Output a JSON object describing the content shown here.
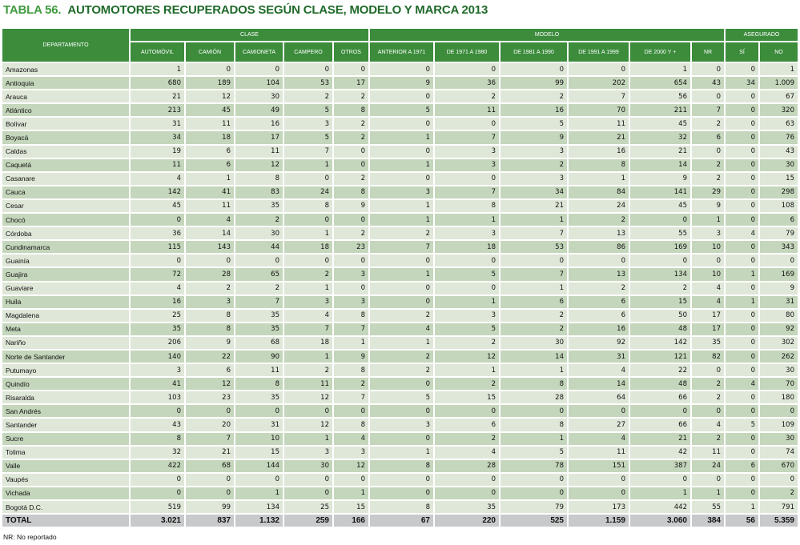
{
  "title": {
    "number": "TABLA 56.",
    "text": "AUTOMOTORES RECUPERADOS SEGÚN CLASE, MODELO Y MARCA 2013"
  },
  "colors": {
    "header": "#3c8c3c",
    "row_light": "#dfe7d8",
    "row_dark": "#c4d6bb",
    "total": "#c8c9cb",
    "title": "#1f6a2a"
  },
  "header": {
    "departamento": "DEPARTAMENTO",
    "groups": [
      {
        "label": "CLASE",
        "columns": [
          "AUTOMÓVIL",
          "CAMIÓN",
          "CAMIONETA",
          "CAMPERO",
          "OTROS"
        ]
      },
      {
        "label": "MODELO",
        "columns": [
          "ANTERIOR A 1971",
          "DE 1971 A 1980",
          "DE 1981 A 1990",
          "DE 1991 A 1999",
          "DE 2000 Y +",
          "NR"
        ]
      },
      {
        "label": "ASEGURADO",
        "columns": [
          "SÍ",
          "NO"
        ]
      }
    ]
  },
  "rows": [
    {
      "dep": "Amazonas",
      "values": [
        "1",
        "0",
        "0",
        "0",
        "0",
        "0",
        "0",
        "0",
        "0",
        "1",
        "0",
        "0",
        "1"
      ]
    },
    {
      "dep": "Antioquia",
      "values": [
        "680",
        "189",
        "104",
        "53",
        "17",
        "9",
        "36",
        "99",
        "202",
        "654",
        "43",
        "34",
        "1.009"
      ]
    },
    {
      "dep": "Arauca",
      "values": [
        "21",
        "12",
        "30",
        "2",
        "2",
        "0",
        "2",
        "2",
        "7",
        "56",
        "0",
        "0",
        "67"
      ]
    },
    {
      "dep": "Atlántico",
      "values": [
        "213",
        "45",
        "49",
        "5",
        "8",
        "5",
        "11",
        "16",
        "70",
        "211",
        "7",
        "0",
        "320"
      ]
    },
    {
      "dep": "Bolívar",
      "values": [
        "31",
        "11",
        "16",
        "3",
        "2",
        "0",
        "0",
        "5",
        "11",
        "45",
        "2",
        "0",
        "63"
      ]
    },
    {
      "dep": "Boyacá",
      "values": [
        "34",
        "18",
        "17",
        "5",
        "2",
        "1",
        "7",
        "9",
        "21",
        "32",
        "6",
        "0",
        "76"
      ]
    },
    {
      "dep": "Caldas",
      "values": [
        "19",
        "6",
        "11",
        "7",
        "0",
        "0",
        "3",
        "3",
        "16",
        "21",
        "0",
        "0",
        "43"
      ]
    },
    {
      "dep": "Caquetá",
      "values": [
        "11",
        "6",
        "12",
        "1",
        "0",
        "1",
        "3",
        "2",
        "8",
        "14",
        "2",
        "0",
        "30"
      ]
    },
    {
      "dep": "Casanare",
      "values": [
        "4",
        "1",
        "8",
        "0",
        "2",
        "0",
        "0",
        "3",
        "1",
        "9",
        "2",
        "0",
        "15"
      ]
    },
    {
      "dep": "Cauca",
      "values": [
        "142",
        "41",
        "83",
        "24",
        "8",
        "3",
        "7",
        "34",
        "84",
        "141",
        "29",
        "0",
        "298"
      ]
    },
    {
      "dep": "Cesar",
      "values": [
        "45",
        "11",
        "35",
        "8",
        "9",
        "1",
        "8",
        "21",
        "24",
        "45",
        "9",
        "0",
        "108"
      ]
    },
    {
      "dep": "Chocó",
      "values": [
        "0",
        "4",
        "2",
        "0",
        "0",
        "1",
        "1",
        "1",
        "2",
        "0",
        "1",
        "0",
        "6"
      ]
    },
    {
      "dep": "Córdoba",
      "values": [
        "36",
        "14",
        "30",
        "1",
        "2",
        "2",
        "3",
        "7",
        "13",
        "55",
        "3",
        "4",
        "79"
      ]
    },
    {
      "dep": "Cundinamarca",
      "values": [
        "115",
        "143",
        "44",
        "18",
        "23",
        "7",
        "18",
        "53",
        "86",
        "169",
        "10",
        "0",
        "343"
      ]
    },
    {
      "dep": "Guainía",
      "values": [
        "0",
        "0",
        "0",
        "0",
        "0",
        "0",
        "0",
        "0",
        "0",
        "0",
        "0",
        "0",
        "0"
      ]
    },
    {
      "dep": "Guajira",
      "values": [
        "72",
        "28",
        "65",
        "2",
        "3",
        "1",
        "5",
        "7",
        "13",
        "134",
        "10",
        "1",
        "169"
      ]
    },
    {
      "dep": "Guaviare",
      "values": [
        "4",
        "2",
        "2",
        "1",
        "0",
        "0",
        "0",
        "1",
        "2",
        "2",
        "4",
        "0",
        "9"
      ]
    },
    {
      "dep": "Huila",
      "values": [
        "16",
        "3",
        "7",
        "3",
        "3",
        "0",
        "1",
        "6",
        "6",
        "15",
        "4",
        "1",
        "31"
      ]
    },
    {
      "dep": "Magdalena",
      "values": [
        "25",
        "8",
        "35",
        "4",
        "8",
        "2",
        "3",
        "2",
        "6",
        "50",
        "17",
        "0",
        "80"
      ]
    },
    {
      "dep": "Meta",
      "values": [
        "35",
        "8",
        "35",
        "7",
        "7",
        "4",
        "5",
        "2",
        "16",
        "48",
        "17",
        "0",
        "92"
      ]
    },
    {
      "dep": "Nariño",
      "values": [
        "206",
        "9",
        "68",
        "18",
        "1",
        "1",
        "2",
        "30",
        "92",
        "142",
        "35",
        "0",
        "302"
      ]
    },
    {
      "dep": "Norte de Santander",
      "values": [
        "140",
        "22",
        "90",
        "1",
        "9",
        "2",
        "12",
        "14",
        "31",
        "121",
        "82",
        "0",
        "262"
      ]
    },
    {
      "dep": "Putumayo",
      "values": [
        "3",
        "6",
        "11",
        "2",
        "8",
        "2",
        "1",
        "1",
        "4",
        "22",
        "0",
        "0",
        "30"
      ]
    },
    {
      "dep": "Quindío",
      "values": [
        "41",
        "12",
        "8",
        "11",
        "2",
        "0",
        "2",
        "8",
        "14",
        "48",
        "2",
        "4",
        "70"
      ]
    },
    {
      "dep": "Risaralda",
      "values": [
        "103",
        "23",
        "35",
        "12",
        "7",
        "5",
        "15",
        "28",
        "64",
        "66",
        "2",
        "0",
        "180"
      ]
    },
    {
      "dep": "San Andrés",
      "values": [
        "0",
        "0",
        "0",
        "0",
        "0",
        "0",
        "0",
        "0",
        "0",
        "0",
        "0",
        "0",
        "0"
      ]
    },
    {
      "dep": "Santander",
      "values": [
        "43",
        "20",
        "31",
        "12",
        "8",
        "3",
        "6",
        "8",
        "27",
        "66",
        "4",
        "5",
        "109"
      ]
    },
    {
      "dep": "Sucre",
      "values": [
        "8",
        "7",
        "10",
        "1",
        "4",
        "0",
        "2",
        "1",
        "4",
        "21",
        "2",
        "0",
        "30"
      ]
    },
    {
      "dep": "Tolima",
      "values": [
        "32",
        "21",
        "15",
        "3",
        "3",
        "1",
        "4",
        "5",
        "11",
        "42",
        "11",
        "0",
        "74"
      ]
    },
    {
      "dep": "Valle",
      "values": [
        "422",
        "68",
        "144",
        "30",
        "12",
        "8",
        "28",
        "78",
        "151",
        "387",
        "24",
        "6",
        "670"
      ]
    },
    {
      "dep": "Vaupés",
      "values": [
        "0",
        "0",
        "0",
        "0",
        "0",
        "0",
        "0",
        "0",
        "0",
        "0",
        "0",
        "0",
        "0"
      ]
    },
    {
      "dep": "Vichada",
      "values": [
        "0",
        "0",
        "1",
        "0",
        "1",
        "0",
        "0",
        "0",
        "0",
        "1",
        "1",
        "0",
        "2"
      ]
    },
    {
      "dep": "Bogotá D.C.",
      "values": [
        "519",
        "99",
        "134",
        "25",
        "15",
        "8",
        "35",
        "79",
        "173",
        "442",
        "55",
        "1",
        "791"
      ]
    }
  ],
  "total": {
    "dep": "TOTAL",
    "values": [
      "3.021",
      "837",
      "1.132",
      "259",
      "166",
      "67",
      "220",
      "525",
      "1.159",
      "3.060",
      "384",
      "56",
      "5.359"
    ]
  },
  "footnote": "NR: No reportado"
}
